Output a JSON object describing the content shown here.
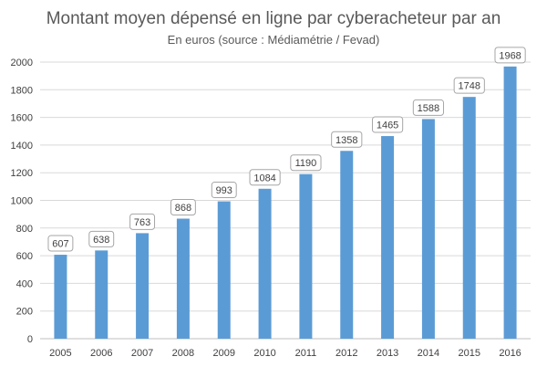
{
  "chart_data": {
    "type": "bar",
    "title": "Montant moyen dépensé en ligne par cyberacheteur par an",
    "subtitle": "En euros (source : Médiamétrie / Fevad)",
    "categories": [
      "2005",
      "2006",
      "2007",
      "2008",
      "2009",
      "2010",
      "2011",
      "2012",
      "2013",
      "2014",
      "2015",
      "2016"
    ],
    "values": [
      607,
      638,
      763,
      868,
      993,
      1084,
      1190,
      1358,
      1465,
      1588,
      1748,
      1968
    ],
    "ylim": [
      0,
      2000
    ],
    "yticks": [
      0,
      200,
      400,
      600,
      800,
      1000,
      1200,
      1400,
      1600,
      1800,
      2000
    ],
    "grid": true,
    "legend": "none",
    "colors": {
      "bar": "#5b9bd5",
      "grid": "#d9d9d9",
      "label_border": "#a6a6a6"
    }
  }
}
